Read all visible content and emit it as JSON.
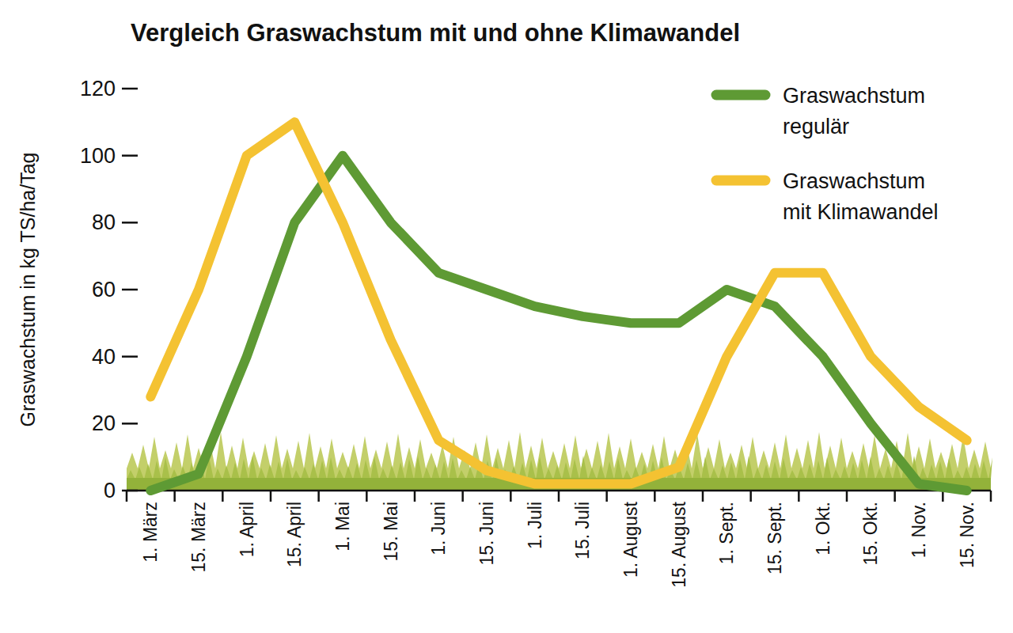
{
  "chart_data": {
    "type": "line",
    "title": "Vergleich Graswachstum mit und ohne Klimawandel",
    "y_label": "Graswachstum in kg TS/ha/Tag",
    "categories": [
      "1. März",
      "15. März",
      "1. April",
      "15. April",
      "1. Mai",
      "15. Mai",
      "1. Juni",
      "15. Juni",
      "1. Juli",
      "15. Juli",
      "1. August",
      "15. August",
      "1. Sept.",
      "15. Sept.",
      "1. Okt.",
      "15. Okt.",
      "1. Nov.",
      "15. Nov."
    ],
    "series": [
      {
        "name": "Graswachstum regulär",
        "color": "#5e9a34",
        "values": [
          0,
          5,
          40,
          80,
          100,
          80,
          65,
          60,
          55,
          52,
          50,
          50,
          60,
          55,
          40,
          20,
          2,
          0
        ]
      },
      {
        "name": "Graswachstum mit Klimawandel",
        "color": "#f4c232",
        "values": [
          28,
          60,
          100,
          110,
          80,
          45,
          15,
          6,
          2,
          2,
          2,
          7,
          40,
          65,
          65,
          40,
          25,
          15
        ]
      }
    ],
    "ylim": [
      0,
      120
    ],
    "yticks": [
      0,
      20,
      40,
      60,
      80,
      100,
      120
    ],
    "grid": false,
    "legend": "top-right"
  }
}
